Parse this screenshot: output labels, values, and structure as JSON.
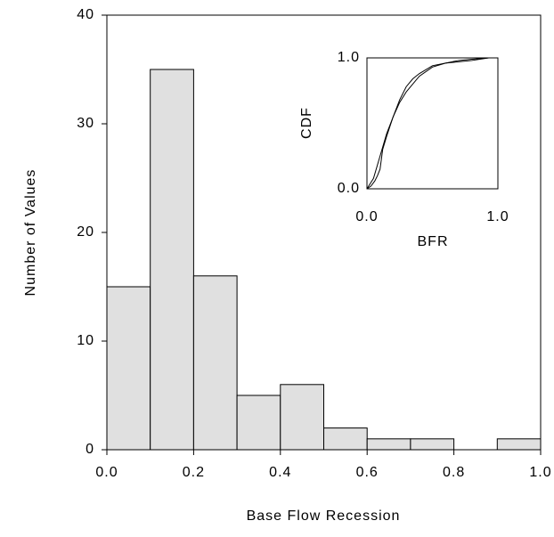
{
  "chart_data": [
    {
      "type": "histogram",
      "xlabel": "Base Flow Recession",
      "ylabel": "Number of Values",
      "bins": [
        0,
        0.1,
        0.2,
        0.3,
        0.4,
        0.5,
        0.6,
        0.7,
        0.8,
        0.9,
        1.0
      ],
      "values": [
        15,
        35,
        16,
        5,
        6,
        2,
        1,
        1,
        0,
        1
      ],
      "color": "#e0e0e0",
      "xlim": [
        0,
        1
      ],
      "ylim": [
        0,
        40
      ],
      "xticks": [
        {
          "value": 0,
          "label": "0.0"
        },
        {
          "value": 0.2,
          "label": "0.2"
        },
        {
          "value": 0.4,
          "label": "0.4"
        },
        {
          "value": 0.6,
          "label": "0.6"
        },
        {
          "value": 0.8,
          "label": "0.8"
        },
        {
          "value": 1.0,
          "label": "1.0"
        }
      ],
      "yticks": [
        0,
        10,
        20,
        30,
        40
      ]
    },
    {
      "type": "line",
      "xlabel": "BFR",
      "ylabel": "CDF",
      "xlim": [
        0,
        1
      ],
      "ylim": [
        0,
        1
      ],
      "xticks": [
        {
          "value": 0,
          "label": "0.0"
        },
        {
          "value": 1,
          "label": "1.0"
        }
      ],
      "yticks": [
        {
          "value": 0,
          "label": "0.0"
        },
        {
          "value": 1,
          "label": "1.0"
        }
      ],
      "series": [
        {
          "color": "#000000",
          "x": [
            0,
            0.03,
            0.06,
            0.08,
            0.1,
            0.12,
            0.15,
            0.2,
            0.25,
            0.3,
            0.35,
            0.4,
            0.5,
            0.6,
            0.7,
            0.8,
            0.93
          ],
          "values": [
            0,
            0.02,
            0.06,
            0.1,
            0.15,
            0.3,
            0.4,
            0.55,
            0.68,
            0.78,
            0.84,
            0.88,
            0.94,
            0.96,
            0.97,
            0.98,
            1.0
          ]
        },
        {
          "color": "#000000",
          "x": [
            0,
            0.05,
            0.1,
            0.15,
            0.2,
            0.25,
            0.3,
            0.4,
            0.5,
            0.6,
            0.7,
            0.8,
            0.93
          ],
          "values": [
            0,
            0.08,
            0.25,
            0.42,
            0.55,
            0.66,
            0.74,
            0.86,
            0.93,
            0.96,
            0.98,
            0.99,
            1.0
          ]
        }
      ]
    }
  ]
}
